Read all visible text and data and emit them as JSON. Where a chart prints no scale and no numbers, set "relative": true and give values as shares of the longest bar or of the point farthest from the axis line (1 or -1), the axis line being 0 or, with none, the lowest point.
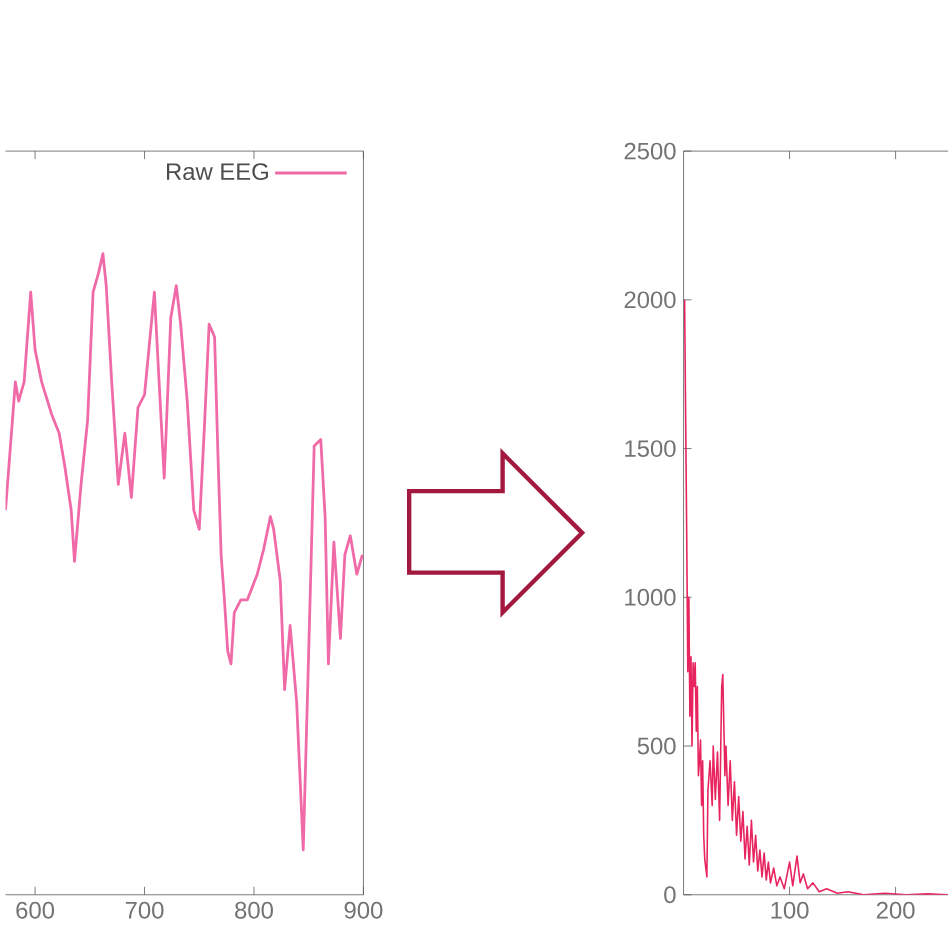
{
  "chart_data": [
    {
      "type": "line",
      "relative": true,
      "legend": "top right",
      "xlim": [
        573,
        900
      ],
      "xticks": [
        600,
        700,
        800,
        900
      ],
      "x": [
        573,
        582,
        585,
        590,
        596,
        600,
        606,
        615,
        622,
        627,
        633,
        636,
        642,
        648,
        653,
        658,
        662,
        665,
        670,
        676,
        682,
        688,
        694,
        700,
        709,
        713,
        718,
        724,
        729,
        733,
        739,
        745,
        750,
        755,
        759,
        764,
        767,
        770,
        773,
        776,
        779,
        782,
        788,
        794,
        803,
        809,
        815,
        818,
        824,
        828,
        833,
        839,
        845,
        850,
        855,
        861,
        865,
        868,
        873,
        879,
        883,
        888,
        894,
        899
      ],
      "series": [
        {
          "name": "Raw EEG",
          "color": "#f06aa8",
          "values": [
            0.6,
            0.8,
            0.77,
            0.8,
            0.94,
            0.85,
            0.8,
            0.75,
            0.72,
            0.67,
            0.6,
            0.52,
            0.64,
            0.74,
            0.94,
            0.97,
            1.0,
            0.95,
            0.8,
            0.64,
            0.72,
            0.62,
            0.76,
            0.78,
            0.94,
            0.81,
            0.65,
            0.9,
            0.95,
            0.89,
            0.77,
            0.6,
            0.57,
            0.74,
            0.89,
            0.87,
            0.69,
            0.53,
            0.46,
            0.38,
            0.36,
            0.44,
            0.46,
            0.46,
            0.5,
            0.54,
            0.59,
            0.57,
            0.49,
            0.32,
            0.42,
            0.3,
            0.07,
            0.38,
            0.7,
            0.71,
            0.59,
            0.36,
            0.55,
            0.4,
            0.53,
            0.56,
            0.5,
            0.53
          ]
        }
      ]
    },
    {
      "type": "line",
      "xlim": [
        0,
        250
      ],
      "xticks": [
        100,
        200
      ],
      "ylim": [
        0,
        2500
      ],
      "yticks": [
        0,
        500,
        1000,
        1500,
        2000,
        2500
      ],
      "x": [
        1,
        2,
        3,
        4,
        5,
        6,
        7,
        8,
        9,
        10,
        11,
        12,
        13,
        14,
        15,
        16,
        17,
        18,
        19,
        20,
        22,
        23,
        25,
        27,
        28,
        30,
        32,
        34,
        36,
        37,
        39,
        40,
        42,
        44,
        46,
        48,
        50,
        52,
        54,
        56,
        58,
        60,
        62,
        64,
        66,
        68,
        70,
        72,
        74,
        76,
        78,
        80,
        82,
        85,
        88,
        91,
        95,
        100,
        103,
        107,
        110,
        113,
        117,
        122,
        128,
        135,
        145,
        155,
        170,
        190,
        210,
        230,
        250
      ],
      "series": [
        {
          "color": "#e8245e",
          "values": [
            2000,
            1600,
            1200,
            750,
            1000,
            600,
            800,
            500,
            780,
            700,
            780,
            550,
            700,
            400,
            450,
            520,
            300,
            450,
            200,
            120,
            60,
            350,
            450,
            300,
            500,
            320,
            480,
            250,
            700,
            740,
            400,
            500,
            300,
            450,
            250,
            380,
            200,
            330,
            180,
            280,
            120,
            230,
            100,
            250,
            110,
            200,
            80,
            150,
            60,
            140,
            50,
            110,
            40,
            90,
            30,
            60,
            20,
            110,
            30,
            130,
            40,
            70,
            20,
            40,
            10,
            20,
            5,
            10,
            0,
            5,
            0,
            3,
            0
          ]
        }
      ]
    }
  ]
}
